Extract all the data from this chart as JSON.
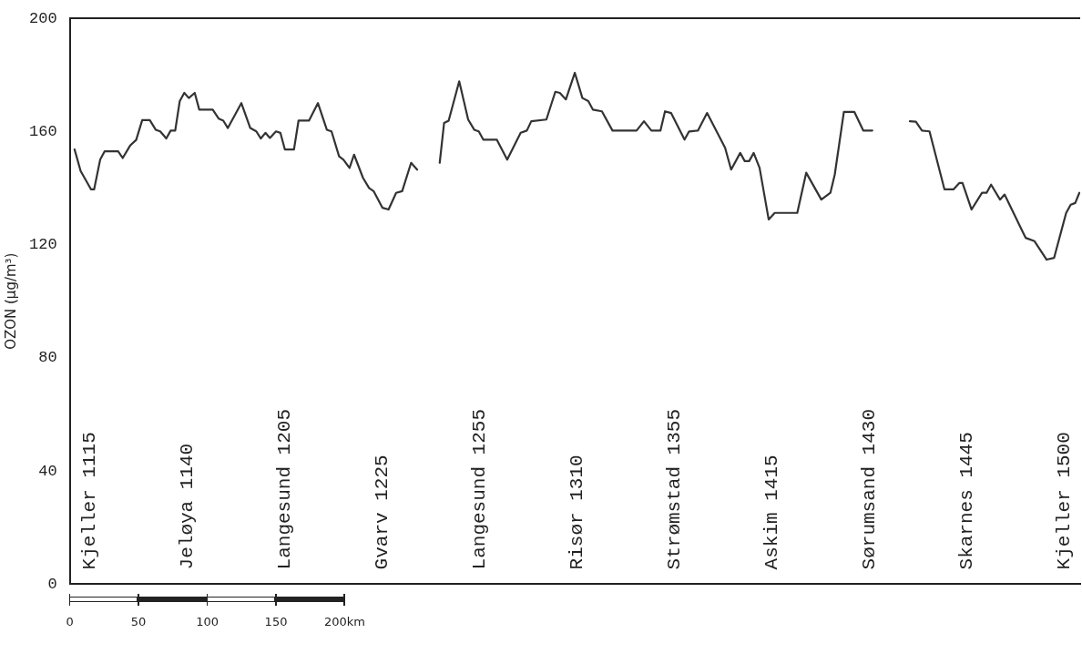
{
  "chart_data": {
    "type": "line",
    "ylabel": "OZON (µg/m³)",
    "x": [
      3.5,
      7.9,
      15.5,
      17.7,
      22.1,
      25.4,
      35.2,
      38.5,
      43.9,
      48.3,
      52.7,
      58.2,
      62.5,
      65.8,
      70.2,
      73.4,
      76.7,
      80,
      83.3,
      86.6,
      90.9,
      94.2,
      104,
      108.4,
      111.7,
      115,
      124.8,
      131.3,
      135.7,
      139,
      142.3,
      145.6,
      150,
      153.2,
      156.5,
      163.1,
      166.4,
      174,
      180.5,
      187,
      190.4,
      195.9,
      199.1,
      203.5,
      206.8,
      213.3,
      217.7,
      221,
      227.5,
      231.9,
      237.4,
      241.8,
      248.3,
      252.7,
      261,
      269.1,
      272.3,
      275.6,
      283.3,
      289.8,
      294.2,
      297.5,
      300.8,
      310.6,
      318.2,
      328,
      332.5,
      335.7,
      346.7,
      353.2,
      356.5,
      360.9,
      367.4,
      372.9,
      377.2,
      380.5,
      387.1,
      394.8,
      412.3,
      417.7,
      423.1,
      429.7,
      433,
      437.4,
      447.2,
      450.5,
      457,
      463.6,
      476.7,
      481.1,
      487.7,
      491,
      494.2,
      497.5,
      501.8,
      508.4,
      512.8,
      529.2,
      535.7,
      546.7,
      553.3,
      556.5,
      563.1,
      570.7,
      577.2,
      583.8,
      597,
      611.1,
      615.5,
      619.9,
      625.4,
      636.3,
      642.8,
      647.2,
      649.4,
      656,
      663.6,
      666.9,
      670.2,
      676.7,
      680,
      695.3,
      701.8,
      710.6,
      716,
      724.8,
      728.1,
      731.4,
      734.4
    ],
    "values": [
      153.6,
      146,
      139.5,
      139.5,
      150,
      153,
      153,
      150.6,
      155,
      157,
      164,
      164,
      160.6,
      160,
      157.5,
      160.3,
      160.3,
      170.7,
      173.6,
      171.8,
      173.6,
      167.7,
      167.7,
      164.5,
      163.8,
      161.2,
      170,
      161.2,
      160,
      157.5,
      159.5,
      157.7,
      160,
      159.5,
      153.6,
      153.6,
      163.8,
      163.8,
      170,
      160.6,
      160,
      151.2,
      150,
      147.1,
      151.8,
      143.6,
      140,
      138.9,
      133,
      132.4,
      138.3,
      138.9,
      148.9,
      146.5,
      null,
      148.9,
      163,
      163.8,
      177.7,
      164.2,
      160.6,
      160,
      157.1,
      157.1,
      150,
      159.5,
      160.3,
      163.6,
      164.2,
      174,
      173.6,
      171.3,
      180.7,
      171.8,
      170.7,
      167.7,
      167.1,
      160.3,
      160.3,
      163.6,
      160.3,
      160.3,
      167.1,
      166.5,
      157.1,
      160,
      160.3,
      166.5,
      154.2,
      146.5,
      152.4,
      149.5,
      149.5,
      152.4,
      147.1,
      128.9,
      131.2,
      131.2,
      145.4,
      135.9,
      138.3,
      144.8,
      166.9,
      166.9,
      160.3,
      160.3,
      null,
      163.6,
      163.4,
      160.3,
      160,
      139.5,
      139.5,
      141.8,
      141.8,
      132.4,
      138.3,
      138.3,
      141.2,
      135.9,
      137.7,
      122.4,
      121.2,
      114.7,
      115.3,
      131.2,
      134.1,
      134.7,
      138.3
    ],
    "color": "#333333",
    "xlim": [
      0,
      735
    ],
    "xticks": [
      0,
      50,
      100,
      150,
      {
        "value": 200,
        "label": "200km"
      }
    ],
    "ylim": [
      0,
      200
    ],
    "yticks": [
      0,
      40,
      80,
      120,
      160,
      200
    ],
    "grid": false,
    "legend": false,
    "marker": "none",
    "line_style": "solid",
    "annotations": [
      "Kjeller 1115",
      "Jeløya 1140",
      "Langesund 1205",
      "Gvarv 1225",
      "Langesund 1255",
      "Risør 1310",
      "Strømstad 1355",
      "Askim 1415",
      "Sørumsand 1430",
      "Skarnes 1445",
      "Kjeller 1500"
    ]
  }
}
